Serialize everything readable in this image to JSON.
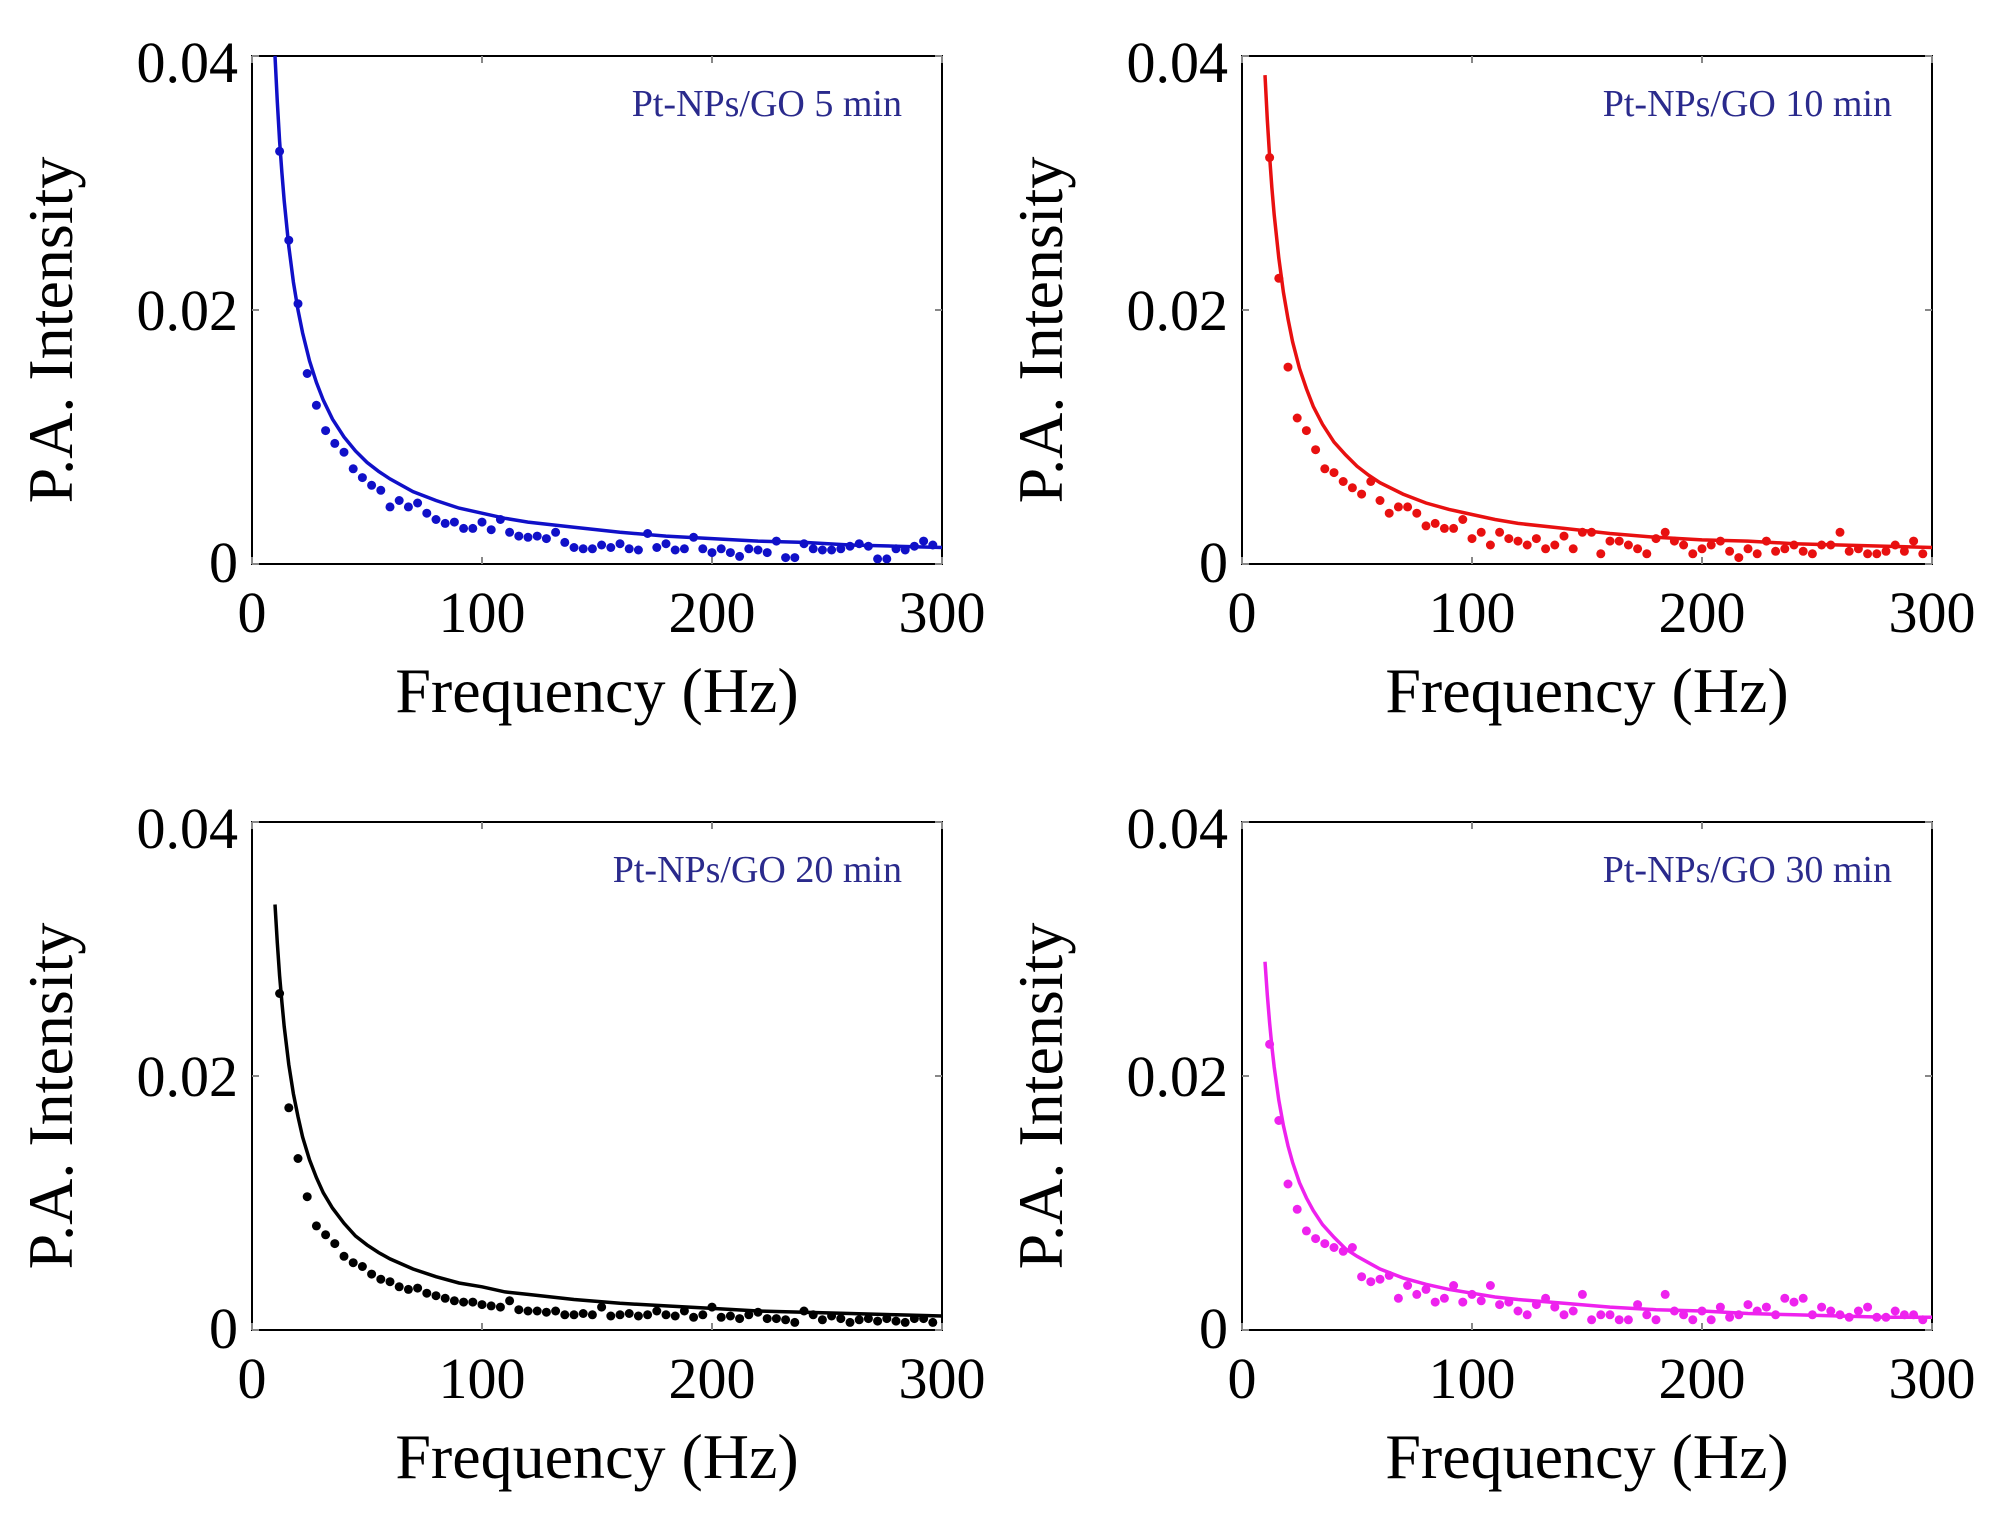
{
  "chart_data": [
    {
      "type": "scatter",
      "title": "",
      "annotation": "Pt-NPs/GO 5 min",
      "annotation_color": "#2a2a8c",
      "xlabel": "Frequency (Hz)",
      "ylabel": "P.A. Intensity",
      "xlim": [
        0,
        300
      ],
      "ylim": [
        0,
        0.04
      ],
      "xticks": [
        0,
        100,
        200,
        300
      ],
      "xtick_labels": [
        "0",
        "100",
        "200",
        "300"
      ],
      "yticks": [
        0,
        0.02,
        0.04
      ],
      "ytick_labels": [
        "0",
        "0.02",
        "0.04"
      ],
      "grid": false,
      "color": "#1010c8",
      "series": [
        {
          "kind": "points",
          "x": [
            12,
            16,
            20,
            24,
            28,
            32,
            36,
            40,
            44,
            48,
            52,
            56,
            60,
            64,
            68,
            72,
            76,
            80,
            84,
            88,
            92,
            96,
            100,
            104,
            108,
            112,
            116,
            120,
            124,
            128,
            132,
            136,
            140,
            144,
            148,
            152,
            156,
            160,
            164,
            168,
            172,
            176,
            180,
            184,
            188,
            192,
            196,
            200,
            204,
            208,
            212,
            216,
            220,
            224,
            228,
            232,
            236,
            240,
            244,
            248,
            252,
            256,
            260,
            264,
            268,
            272,
            276,
            280,
            284,
            288,
            292,
            296
          ],
          "y": [
            0.0325,
            0.0255,
            0.0205,
            0.015,
            0.0125,
            0.0105,
            0.0095,
            0.0088,
            0.0075,
            0.0068,
            0.0062,
            0.0058,
            0.0045,
            0.005,
            0.0045,
            0.0048,
            0.004,
            0.0035,
            0.0032,
            0.0033,
            0.0028,
            0.0028,
            0.0033,
            0.0027,
            0.0035,
            0.0025,
            0.0022,
            0.0021,
            0.0022,
            0.002,
            0.0025,
            0.0017,
            0.0013,
            0.0012,
            0.0012,
            0.0015,
            0.0013,
            0.0016,
            0.0012,
            0.0011,
            0.0024,
            0.0013,
            0.0016,
            0.0011,
            0.0012,
            0.0021,
            0.0012,
            0.0009,
            0.0012,
            0.0009,
            0.0006,
            0.0012,
            0.0011,
            0.0009,
            0.0018,
            0.0005,
            0.0005,
            0.0016,
            0.0012,
            0.0011,
            0.0011,
            0.0012,
            0.0014,
            0.0016,
            0.0014,
            0.0004,
            0.0004,
            0.0012,
            0.0011,
            0.0014,
            0.0018,
            0.0015
          ]
        },
        {
          "kind": "fit",
          "x": [
            10,
            11,
            12,
            13,
            14,
            16,
            18,
            20,
            22,
            25,
            28,
            31,
            35,
            40,
            45,
            50,
            55,
            60,
            70,
            80,
            90,
            100,
            110,
            120,
            140,
            160,
            180,
            200,
            220,
            240,
            260,
            280,
            300
          ],
          "y": [
            0.04,
            0.0364,
            0.0333,
            0.0308,
            0.0286,
            0.025,
            0.0222,
            0.02,
            0.0182,
            0.016,
            0.0143,
            0.0129,
            0.0114,
            0.01,
            0.0089,
            0.008,
            0.0073,
            0.0067,
            0.0057,
            0.005,
            0.0044,
            0.004,
            0.0036,
            0.0033,
            0.0029,
            0.0025,
            0.0022,
            0.002,
            0.0018,
            0.0017,
            0.0015,
            0.0014,
            0.0013
          ]
        }
      ]
    },
    {
      "type": "scatter",
      "title": "",
      "annotation": "Pt-NPs/GO 10 min",
      "annotation_color": "#2a2a8c",
      "xlabel": "Frequency (Hz)",
      "ylabel": "P.A. Intensity",
      "xlim": [
        0,
        300
      ],
      "ylim": [
        0,
        0.04
      ],
      "xticks": [
        0,
        100,
        200,
        300
      ],
      "xtick_labels": [
        "0",
        "100",
        "200",
        "300"
      ],
      "yticks": [
        0,
        0.02,
        0.04
      ],
      "ytick_labels": [
        "0",
        "0.02",
        "0.04"
      ],
      "grid": false,
      "color": "#e81010",
      "series": [
        {
          "kind": "points",
          "x": [
            12,
            16,
            20,
            24,
            28,
            32,
            36,
            40,
            44,
            48,
            52,
            56,
            60,
            64,
            68,
            72,
            76,
            80,
            84,
            88,
            92,
            96,
            100,
            104,
            108,
            112,
            116,
            120,
            124,
            128,
            132,
            136,
            140,
            144,
            148,
            152,
            156,
            160,
            164,
            168,
            172,
            176,
            180,
            184,
            188,
            192,
            196,
            200,
            204,
            208,
            212,
            216,
            220,
            224,
            228,
            232,
            236,
            240,
            244,
            248,
            252,
            256,
            260,
            264,
            268,
            272,
            276,
            280,
            284,
            288,
            292,
            296
          ],
          "y": [
            0.032,
            0.0225,
            0.0155,
            0.0115,
            0.0105,
            0.009,
            0.0075,
            0.0072,
            0.0065,
            0.006,
            0.0055,
            0.0065,
            0.005,
            0.004,
            0.0045,
            0.0045,
            0.004,
            0.003,
            0.0032,
            0.0028,
            0.0028,
            0.0035,
            0.002,
            0.0025,
            0.0015,
            0.0025,
            0.002,
            0.0018,
            0.0015,
            0.002,
            0.0012,
            0.0015,
            0.0022,
            0.0012,
            0.0025,
            0.0025,
            0.0008,
            0.0018,
            0.0018,
            0.0015,
            0.0012,
            0.0008,
            0.002,
            0.0025,
            0.0018,
            0.0015,
            0.0008,
            0.0012,
            0.0015,
            0.0018,
            0.001,
            0.0005,
            0.0012,
            0.0008,
            0.0018,
            0.001,
            0.0012,
            0.0015,
            0.001,
            0.0008,
            0.0015,
            0.0015,
            0.0025,
            0.001,
            0.0012,
            0.0008,
            0.0008,
            0.001,
            0.0015,
            0.001,
            0.0018,
            0.0008
          ]
        },
        {
          "kind": "fit",
          "x": [
            10,
            11,
            12,
            13,
            14,
            16,
            18,
            20,
            22,
            25,
            28,
            31,
            35,
            40,
            45,
            50,
            55,
            60,
            70,
            80,
            90,
            100,
            110,
            120,
            140,
            160,
            180,
            200,
            220,
            240,
            260,
            280,
            300
          ],
          "y": [
            0.0385,
            0.035,
            0.0321,
            0.0296,
            0.0275,
            0.0241,
            0.0214,
            0.0193,
            0.0175,
            0.0154,
            0.0138,
            0.0124,
            0.011,
            0.0096,
            0.0086,
            0.0077,
            0.007,
            0.0064,
            0.0055,
            0.0048,
            0.0043,
            0.0039,
            0.0035,
            0.0032,
            0.0028,
            0.0024,
            0.0021,
            0.0019,
            0.0018,
            0.0016,
            0.0015,
            0.0014,
            0.0013
          ]
        }
      ]
    },
    {
      "type": "scatter",
      "title": "",
      "annotation": "Pt-NPs/GO  20 min",
      "annotation_color": "#2a2a8c",
      "xlabel": "Frequency (Hz)",
      "ylabel": "P.A. Intensity",
      "xlim": [
        0,
        300
      ],
      "ylim": [
        0,
        0.04
      ],
      "xticks": [
        0,
        100,
        200,
        300
      ],
      "xtick_labels": [
        "0",
        "100",
        "200",
        "300"
      ],
      "yticks": [
        0,
        0.02,
        0.04
      ],
      "ytick_labels": [
        "0",
        "0.02",
        "0.04"
      ],
      "grid": false,
      "color": "#000000",
      "series": [
        {
          "kind": "points",
          "x": [
            12,
            16,
            20,
            24,
            28,
            32,
            36,
            40,
            44,
            48,
            52,
            56,
            60,
            64,
            68,
            72,
            76,
            80,
            84,
            88,
            92,
            96,
            100,
            104,
            108,
            112,
            116,
            120,
            124,
            128,
            132,
            136,
            140,
            144,
            148,
            152,
            156,
            160,
            164,
            168,
            172,
            176,
            180,
            184,
            188,
            192,
            196,
            200,
            204,
            208,
            212,
            216,
            220,
            224,
            228,
            232,
            236,
            240,
            244,
            248,
            252,
            256,
            260,
            264,
            268,
            272,
            276,
            280,
            284,
            288,
            292,
            296
          ],
          "y": [
            0.0265,
            0.0175,
            0.0135,
            0.0105,
            0.0082,
            0.0075,
            0.0068,
            0.0058,
            0.0053,
            0.005,
            0.0044,
            0.004,
            0.0038,
            0.0034,
            0.0032,
            0.0033,
            0.0029,
            0.0027,
            0.0025,
            0.0023,
            0.0022,
            0.0022,
            0.002,
            0.0019,
            0.0018,
            0.0023,
            0.0016,
            0.0015,
            0.0015,
            0.0014,
            0.0015,
            0.0012,
            0.0012,
            0.0013,
            0.0012,
            0.0018,
            0.0011,
            0.0012,
            0.0013,
            0.0011,
            0.0012,
            0.0015,
            0.0012,
            0.0011,
            0.0015,
            0.001,
            0.0012,
            0.0018,
            0.001,
            0.0011,
            0.0009,
            0.0012,
            0.0014,
            0.0009,
            0.0009,
            0.0008,
            0.0006,
            0.0015,
            0.0012,
            0.0008,
            0.0011,
            0.0009,
            0.0006,
            0.0008,
            0.0009,
            0.0007,
            0.0009,
            0.0007,
            0.0006,
            0.0009,
            0.0009,
            0.0006
          ]
        },
        {
          "kind": "fit",
          "x": [
            10,
            11,
            12,
            13,
            14,
            16,
            18,
            20,
            22,
            25,
            28,
            31,
            35,
            40,
            45,
            50,
            55,
            60,
            70,
            80,
            90,
            100,
            110,
            120,
            140,
            160,
            180,
            200,
            220,
            240,
            260,
            280,
            300
          ],
          "y": [
            0.0335,
            0.0305,
            0.0279,
            0.0258,
            0.0239,
            0.0209,
            0.0186,
            0.0168,
            0.0152,
            0.0134,
            0.012,
            0.0108,
            0.0096,
            0.0084,
            0.0074,
            0.0067,
            0.0061,
            0.0056,
            0.0048,
            0.0042,
            0.0037,
            0.0034,
            0.003,
            0.0028,
            0.0024,
            0.0021,
            0.0019,
            0.0017,
            0.0015,
            0.0014,
            0.0013,
            0.0012,
            0.0011
          ]
        }
      ]
    },
    {
      "type": "scatter",
      "title": "",
      "annotation": "Pt-NPs/GO 30 min",
      "annotation_color": "#2a2a8c",
      "xlabel": "Frequency (Hz)",
      "ylabel": "P.A. Intensity",
      "xlim": [
        0,
        300
      ],
      "ylim": [
        0,
        0.04
      ],
      "xticks": [
        0,
        100,
        200,
        300
      ],
      "xtick_labels": [
        "0",
        "100",
        "200",
        "300"
      ],
      "yticks": [
        0,
        0.02,
        0.04
      ],
      "ytick_labels": [
        "0",
        "0.02",
        "0.04"
      ],
      "grid": false,
      "color": "#ee22ee",
      "series": [
        {
          "kind": "points",
          "x": [
            12,
            16,
            20,
            24,
            28,
            32,
            36,
            40,
            44,
            48,
            52,
            56,
            60,
            64,
            68,
            72,
            76,
            80,
            84,
            88,
            92,
            96,
            100,
            104,
            108,
            112,
            116,
            120,
            124,
            128,
            132,
            136,
            140,
            144,
            148,
            152,
            156,
            160,
            164,
            168,
            172,
            176,
            180,
            184,
            188,
            192,
            196,
            200,
            204,
            208,
            212,
            216,
            220,
            224,
            228,
            232,
            236,
            240,
            244,
            248,
            252,
            256,
            260,
            264,
            268,
            272,
            276,
            280,
            284,
            288,
            292,
            296
          ],
          "y": [
            0.0225,
            0.0165,
            0.0115,
            0.0095,
            0.0078,
            0.0072,
            0.0068,
            0.0065,
            0.0062,
            0.0065,
            0.0042,
            0.0038,
            0.004,
            0.0043,
            0.0025,
            0.0035,
            0.0028,
            0.0032,
            0.0022,
            0.0025,
            0.0035,
            0.0022,
            0.0028,
            0.0023,
            0.0035,
            0.002,
            0.0022,
            0.0015,
            0.0012,
            0.002,
            0.0025,
            0.0018,
            0.0012,
            0.0015,
            0.0028,
            0.0008,
            0.0012,
            0.0012,
            0.0008,
            0.0008,
            0.002,
            0.0012,
            0.0008,
            0.0028,
            0.0015,
            0.0012,
            0.0008,
            0.0015,
            0.0008,
            0.0018,
            0.001,
            0.0012,
            0.002,
            0.0015,
            0.0018,
            0.0012,
            0.0025,
            0.0022,
            0.0025,
            0.0012,
            0.0018,
            0.0015,
            0.0012,
            0.001,
            0.0015,
            0.0018,
            0.001,
            0.001,
            0.0015,
            0.0012,
            0.0012,
            0.0008
          ]
        },
        {
          "kind": "fit",
          "x": [
            10,
            11,
            12,
            13,
            14,
            16,
            18,
            20,
            22,
            25,
            28,
            31,
            35,
            40,
            45,
            50,
            55,
            60,
            70,
            80,
            90,
            100,
            110,
            120,
            140,
            160,
            180,
            200,
            220,
            240,
            260,
            280,
            300
          ],
          "y": [
            0.029,
            0.0264,
            0.0242,
            0.0223,
            0.0207,
            0.0181,
            0.0161,
            0.0145,
            0.0132,
            0.0116,
            0.0104,
            0.0094,
            0.0083,
            0.0073,
            0.0064,
            0.0058,
            0.0053,
            0.0048,
            0.0041,
            0.0036,
            0.0032,
            0.0029,
            0.0026,
            0.0024,
            0.0021,
            0.0018,
            0.0016,
            0.0015,
            0.0013,
            0.0012,
            0.0011,
            0.001,
            0.001
          ]
        }
      ]
    }
  ]
}
